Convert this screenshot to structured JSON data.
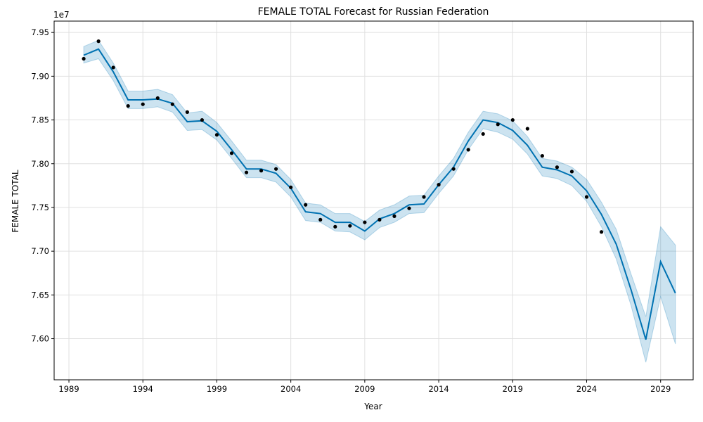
{
  "chart_data": {
    "type": "line",
    "title": "FEMALE TOTAL Forecast for Russian Federation",
    "xlabel": "Year",
    "ylabel": "FEMALE TOTAL",
    "y_multiplier_label": "1e7",
    "xlim": [
      1988.0,
      2031.2
    ],
    "ylim": [
      75.53,
      79.63
    ],
    "x_ticks": [
      1989,
      1994,
      1999,
      2004,
      2009,
      2014,
      2019,
      2024,
      2029
    ],
    "x_tick_labels": [
      "1989",
      "1994",
      "1999",
      "2004",
      "2009",
      "2014",
      "2019",
      "2024",
      "2029"
    ],
    "y_ticks": [
      76.0,
      76.5,
      77.0,
      77.5,
      78.0,
      78.5,
      79.0,
      79.5
    ],
    "y_tick_labels": [
      "7.60",
      "7.65",
      "7.70",
      "7.75",
      "7.80",
      "7.85",
      "7.90",
      "7.95"
    ],
    "grid": true,
    "colors": {
      "forecast": "#0072b2",
      "band": "#0072b2",
      "observed": "#000000",
      "grid": "#e0e0e0"
    },
    "observed": {
      "x": [
        1990,
        1991,
        1992,
        1993,
        1994,
        1995,
        1996,
        1997,
        1998,
        1999,
        2000,
        2001,
        2002,
        2003,
        2004,
        2005,
        2006,
        2007,
        2008,
        2009,
        2010,
        2011,
        2012,
        2013,
        2014,
        2015,
        2016,
        2017,
        2018,
        2019,
        2020,
        2021,
        2022,
        2023,
        2024,
        2025
      ],
      "y": [
        79.2,
        79.4,
        79.1,
        78.66,
        78.68,
        78.75,
        78.68,
        78.59,
        78.5,
        78.33,
        78.12,
        77.9,
        77.92,
        77.94,
        77.73,
        77.53,
        77.36,
        77.28,
        77.29,
        77.33,
        77.36,
        77.4,
        77.49,
        77.62,
        77.76,
        77.94,
        78.16,
        78.34,
        78.45,
        78.5,
        78.4,
        78.09,
        77.96,
        77.91,
        77.62,
        77.22
      ]
    },
    "forecast": {
      "x": [
        1990,
        1991,
        1992,
        1993,
        1994,
        1995,
        1996,
        1997,
        1998,
        1999,
        2000,
        2001,
        2002,
        2003,
        2004,
        2005,
        2006,
        2007,
        2008,
        2009,
        2010,
        2011,
        2012,
        2013,
        2014,
        2015,
        2016,
        2017,
        2018,
        2019,
        2020,
        2021,
        2022,
        2023,
        2024,
        2025,
        2026,
        2027,
        2028,
        2029,
        2030
      ],
      "yhat": [
        79.24,
        79.31,
        79.05,
        78.73,
        78.73,
        78.74,
        78.69,
        78.48,
        78.49,
        78.37,
        78.16,
        77.94,
        77.94,
        77.89,
        77.72,
        77.45,
        77.43,
        77.33,
        77.33,
        77.23,
        77.37,
        77.43,
        77.53,
        77.54,
        77.76,
        77.96,
        78.26,
        78.5,
        78.47,
        78.38,
        78.21,
        77.96,
        77.93,
        77.86,
        77.69,
        77.42,
        77.08,
        76.56,
        75.99,
        76.88,
        76.52
      ],
      "lower": [
        79.15,
        79.2,
        78.95,
        78.63,
        78.63,
        78.65,
        78.59,
        78.38,
        78.39,
        78.27,
        78.06,
        77.84,
        77.84,
        77.79,
        77.62,
        77.35,
        77.33,
        77.23,
        77.22,
        77.13,
        77.27,
        77.33,
        77.43,
        77.44,
        77.66,
        77.86,
        78.16,
        78.4,
        78.36,
        78.28,
        78.11,
        77.86,
        77.83,
        77.75,
        77.57,
        77.28,
        76.91,
        76.38,
        75.73,
        76.48,
        75.94
      ],
      "upper": [
        79.34,
        79.41,
        79.15,
        78.83,
        78.83,
        78.85,
        78.79,
        78.58,
        78.6,
        78.47,
        78.26,
        78.04,
        78.04,
        77.99,
        77.82,
        77.55,
        77.53,
        77.43,
        77.43,
        77.34,
        77.47,
        77.53,
        77.63,
        77.64,
        77.86,
        78.06,
        78.36,
        78.6,
        78.57,
        78.49,
        78.31,
        78.06,
        78.03,
        77.96,
        77.82,
        77.56,
        77.25,
        76.74,
        76.25,
        77.28,
        77.07
      ]
    }
  }
}
